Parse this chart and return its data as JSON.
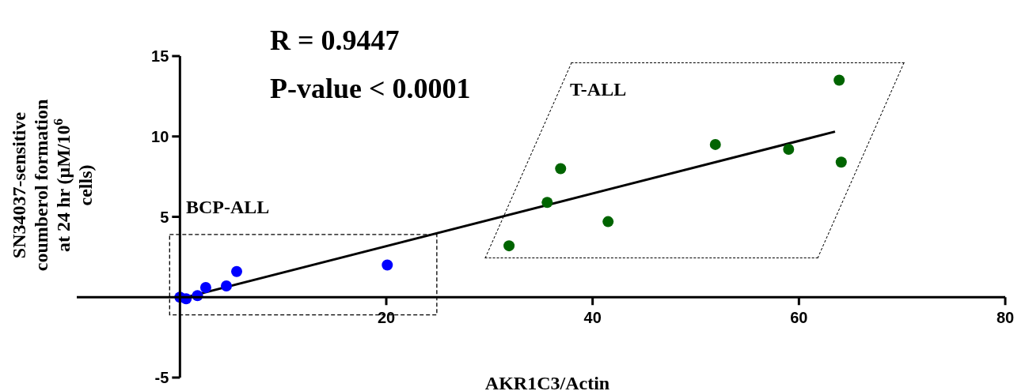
{
  "chart_data": {
    "type": "scatter",
    "xlabel": "AKR1C3/Actin",
    "ylabel": "SN34037-sensitive coumberol formation at 24 hr (μM/10$^{6}$ cells)",
    "xlim": [
      -10,
      80
    ],
    "ylim": [
      -5,
      15
    ],
    "xticks": [
      20,
      40,
      60,
      80
    ],
    "yticks": [
      -5,
      5,
      10,
      15
    ],
    "marker": "circle",
    "annotations": [
      "R = 0.9447",
      "P-value < 0.0001",
      "BCP-ALL",
      "T-ALL"
    ],
    "series": [
      {
        "color": "#0000ff",
        "x": [
          0,
          0.6,
          1.7,
          2.5,
          4.5,
          5.5,
          20.1
        ],
        "values": [
          0,
          -0.1,
          0.1,
          0.6,
          0.7,
          1.6,
          2.0
        ]
      },
      {
        "color": "#006400",
        "x": [
          31.9,
          35.6,
          36.9,
          41.5,
          51.9,
          59.0,
          63.9,
          64.1
        ],
        "values": [
          3.2,
          5.9,
          8.0,
          4.7,
          9.5,
          9.2,
          13.5,
          8.4
        ]
      },
      {
        "type": "line",
        "color": "#000000",
        "marker": "none",
        "x": [
          0,
          63.5
        ],
        "values": [
          -0.1,
          10.3
        ]
      }
    ]
  }
}
